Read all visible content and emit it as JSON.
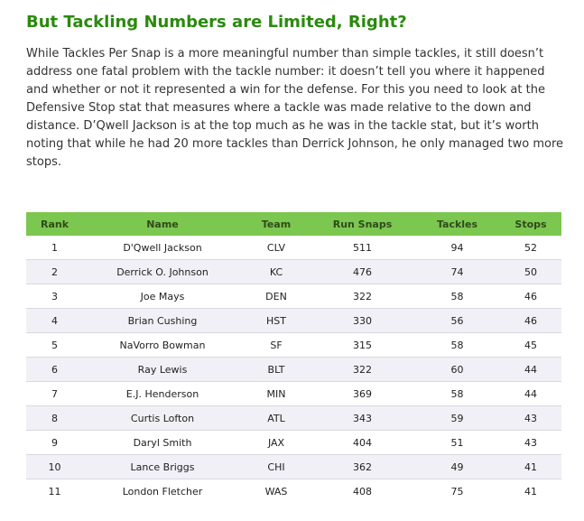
{
  "article": {
    "heading": "But Tackling Numbers are Limited, Right?",
    "paragraph": "While Tackles Per Snap is a more meaningful number than simple tackles, it still doesn’t address one fatal problem with the tackle number: it doesn’t tell you where it happened and whether or not it represented a win for the defense. For this you need to look at the Defensive Stop stat that measures where a tackle was made relative to the down and distance. D’Qwell Jackson is at the top much as he was in the tackle stat, but it’s worth noting that while he had 20 more tackles than Derrick Johnson, he only managed two more stops."
  },
  "table": {
    "columns": [
      "Rank",
      "Name",
      "Team",
      "Run Snaps",
      "Tackles",
      "Stops"
    ],
    "rows": [
      [
        "1",
        "D'Qwell Jackson",
        "CLV",
        "511",
        "94",
        "52"
      ],
      [
        "2",
        "Derrick O. Johnson",
        "KC",
        "476",
        "74",
        "50"
      ],
      [
        "3",
        "Joe Mays",
        "DEN",
        "322",
        "58",
        "46"
      ],
      [
        "4",
        "Brian Cushing",
        "HST",
        "330",
        "56",
        "46"
      ],
      [
        "5",
        "NaVorro Bowman",
        "SF",
        "315",
        "58",
        "45"
      ],
      [
        "6",
        "Ray Lewis",
        "BLT",
        "322",
        "60",
        "44"
      ],
      [
        "7",
        "E.J. Henderson",
        "MIN",
        "369",
        "58",
        "44"
      ],
      [
        "8",
        "Curtis Lofton",
        "ATL",
        "343",
        "59",
        "43"
      ],
      [
        "9",
        "Daryl Smith",
        "JAX",
        "404",
        "51",
        "43"
      ],
      [
        "10",
        "Lance Briggs",
        "CHI",
        "362",
        "49",
        "41"
      ],
      [
        "11",
        "London Fletcher",
        "WAS",
        "408",
        "75",
        "41"
      ]
    ]
  },
  "colors": {
    "heading": "#2b8a0e",
    "header_row": "#7cc74f",
    "header_text": "#2e4a1c",
    "alt_row": "#f0f0f6"
  }
}
